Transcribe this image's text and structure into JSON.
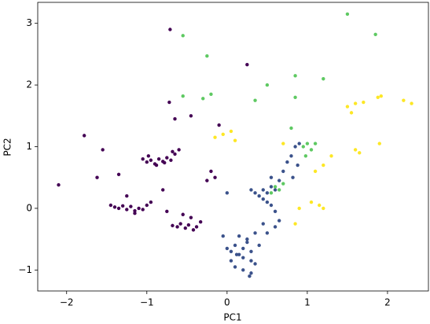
{
  "chart_data": {
    "type": "scatter",
    "x_label": "PC1",
    "y_label": "PC2",
    "xlim": [
      -2.36,
      2.51
    ],
    "ylim": [
      -1.34,
      3.34
    ],
    "xticks": [
      {
        "value": -2,
        "label": "−2"
      },
      {
        "value": -1,
        "label": "−1"
      },
      0,
      1,
      2
    ],
    "yticks": [
      {
        "value": -1,
        "label": "−1"
      },
      0,
      1,
      2,
      3
    ],
    "series": [
      {
        "color": "#440154",
        "x": [
          -2.1,
          -1.78,
          -1.62,
          -1.55,
          -1.35,
          -0.71,
          -0.72,
          -0.45,
          -0.65,
          0.25,
          -0.1,
          -1.05,
          -1.0,
          -0.95,
          -0.9,
          -0.85,
          -0.8,
          -0.75,
          -0.7,
          -0.65,
          -0.6,
          -0.98,
          -0.88,
          -0.78,
          -0.68,
          -1.4,
          -1.35,
          -1.3,
          -1.25,
          -1.2,
          -1.15,
          -1.1,
          -1.05,
          -1.0,
          -0.95,
          -1.45,
          -1.25,
          -1.15,
          -0.68,
          -0.62,
          -0.58,
          -0.52,
          -0.48,
          -0.42,
          -0.38,
          -0.33,
          -0.55,
          -0.45,
          -0.2,
          -0.25,
          -0.15,
          -0.8,
          -0.75
        ],
        "y": [
          0.38,
          1.18,
          0.5,
          0.95,
          0.55,
          2.9,
          1.72,
          1.5,
          1.45,
          2.33,
          1.35,
          0.8,
          0.75,
          0.78,
          0.72,
          0.8,
          0.76,
          0.82,
          0.78,
          0.88,
          0.95,
          0.85,
          0.7,
          0.74,
          0.92,
          0.02,
          0.0,
          0.04,
          -0.02,
          0.03,
          -0.04,
          0.0,
          -0.02,
          0.05,
          0.1,
          0.05,
          0.2,
          -0.08,
          -0.28,
          -0.3,
          -0.25,
          -0.32,
          -0.27,
          -0.35,
          -0.3,
          -0.22,
          -0.1,
          -0.15,
          0.6,
          0.45,
          0.5,
          0.3,
          -0.05
        ]
      },
      {
        "color": "#3b528b",
        "x": [
          0.0,
          0.05,
          0.1,
          0.15,
          0.2,
          0.25,
          0.3,
          0.35,
          0.4,
          0.1,
          0.2,
          0.3,
          0.15,
          0.25,
          0.05,
          0.35,
          0.2,
          0.3,
          0.28,
          0.12,
          0.45,
          0.5,
          0.55,
          0.6,
          0.4,
          0.45,
          0.5,
          0.55,
          0.6,
          0.65,
          0.35,
          0.3,
          0.7,
          0.75,
          0.8,
          0.85,
          0.9,
          0.88,
          0.82,
          0.6,
          0.5,
          -0.05,
          0.0,
          0.65,
          0.55,
          0.45
        ],
        "y": [
          -0.65,
          -0.7,
          -0.6,
          -0.75,
          -0.8,
          -0.55,
          -0.7,
          -0.9,
          -0.6,
          -0.95,
          -1.0,
          -1.05,
          -0.45,
          -0.5,
          -0.85,
          -0.4,
          -0.65,
          -0.85,
          -1.1,
          -0.75,
          0.3,
          0.25,
          0.35,
          0.3,
          0.2,
          0.15,
          0.1,
          0.05,
          -0.05,
          -0.2,
          0.25,
          0.3,
          0.6,
          0.75,
          0.85,
          1.0,
          1.05,
          0.7,
          0.5,
          -0.3,
          -0.4,
          -0.45,
          0.25,
          0.45,
          0.5,
          -0.25
        ]
      },
      {
        "color": "#5ec962",
        "x": [
          -0.55,
          -0.25,
          1.5,
          1.85,
          0.5,
          0.85,
          1.2,
          0.35,
          -0.55,
          -0.3,
          -0.2,
          0.85,
          0.95,
          1.0,
          1.05,
          1.1,
          0.98,
          0.7,
          0.65,
          0.6,
          0.55,
          0.8
        ],
        "y": [
          2.8,
          2.47,
          3.15,
          2.82,
          2.0,
          2.15,
          2.1,
          1.75,
          1.82,
          1.78,
          1.85,
          1.8,
          1.0,
          1.05,
          0.95,
          1.05,
          0.85,
          0.4,
          0.3,
          0.35,
          0.25,
          1.3
        ]
      },
      {
        "color": "#fde725",
        "x": [
          1.5,
          1.6,
          1.7,
          1.88,
          1.92,
          2.2,
          2.3,
          1.55,
          -0.15,
          -0.05,
          0.05,
          0.1,
          0.7,
          1.6,
          1.65,
          1.9,
          1.3,
          1.2,
          1.1,
          1.15,
          0.9,
          1.05,
          1.2,
          0.85
        ],
        "y": [
          1.65,
          1.7,
          1.72,
          1.8,
          1.82,
          1.75,
          1.7,
          1.55,
          1.15,
          1.2,
          1.25,
          1.1,
          1.05,
          0.95,
          0.9,
          1.05,
          0.85,
          0.7,
          0.6,
          0.05,
          0.0,
          0.1,
          0.0,
          -0.25
        ]
      }
    ]
  }
}
